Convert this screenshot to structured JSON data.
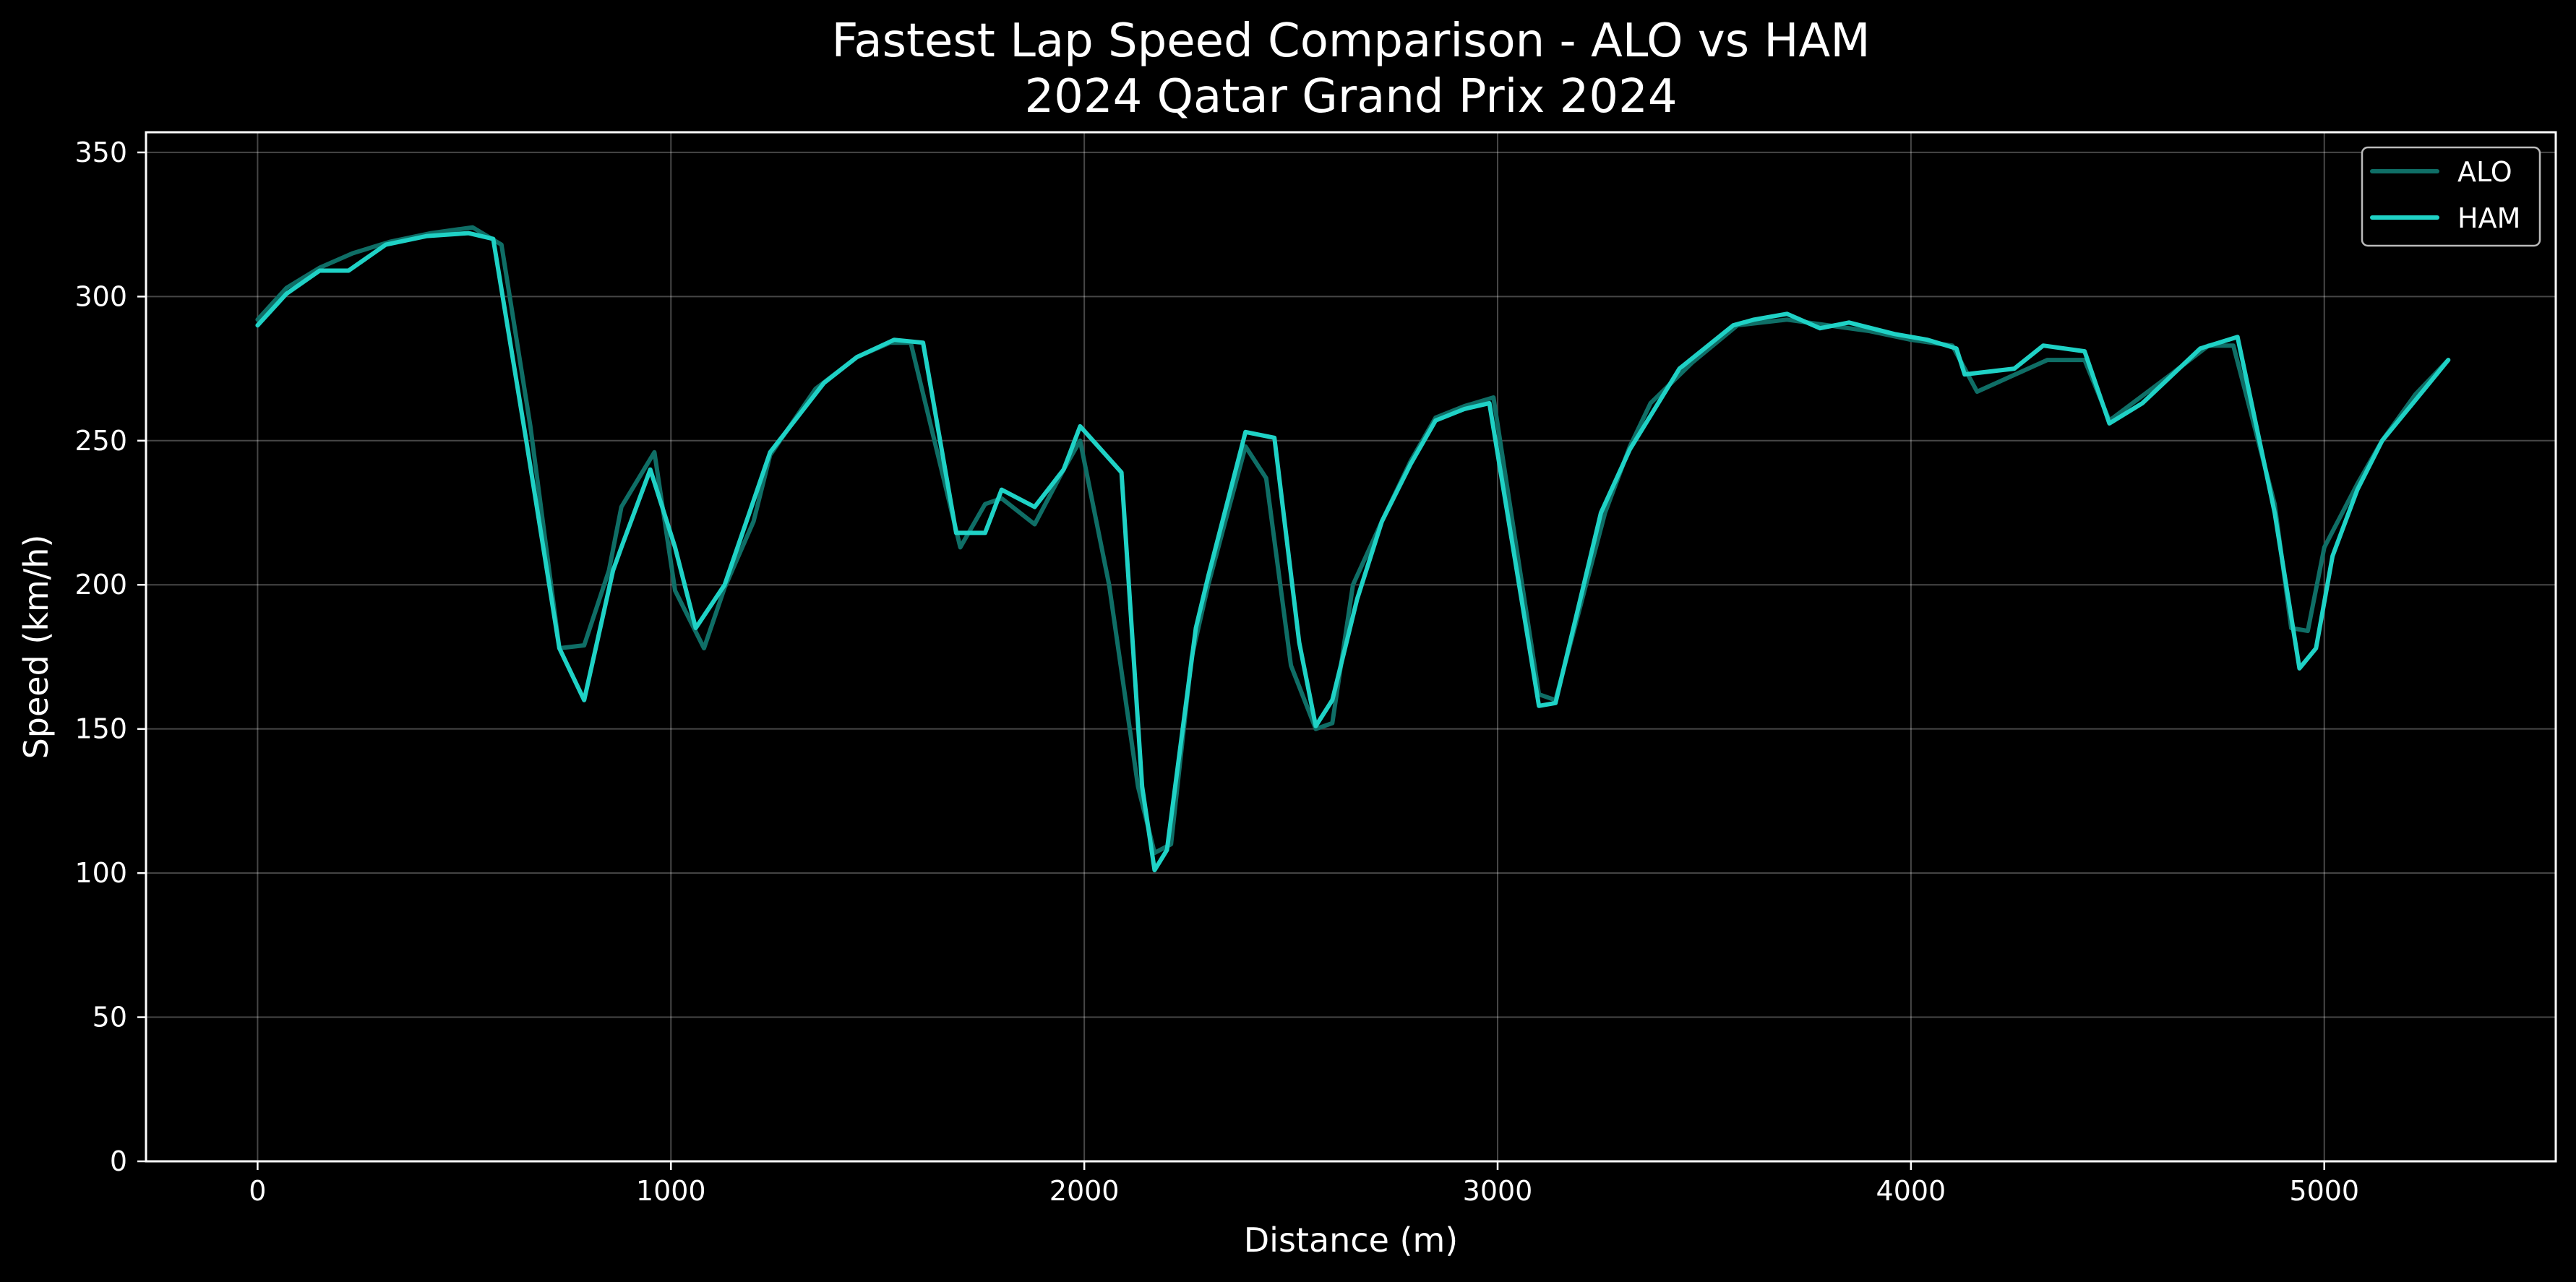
{
  "chart_data": {
    "type": "line",
    "title": "Fastest Lap Speed Comparison - ALO vs HAM",
    "subtitle": "2024 Qatar Grand Prix 2024",
    "xlabel": "Distance (m)",
    "ylabel": "Speed (km/h)",
    "xlim": [
      -270,
      5560
    ],
    "ylim": [
      0,
      357
    ],
    "xticks": [
      0,
      1000,
      2000,
      3000,
      4000,
      5000
    ],
    "yticks": [
      0,
      50,
      100,
      150,
      200,
      250,
      300,
      350
    ],
    "grid": true,
    "legend_position": "top-right",
    "background": "#000000",
    "series": [
      {
        "name": "ALO",
        "color": "#0f6e66",
        "points": [
          [
            0,
            292
          ],
          [
            70,
            303
          ],
          [
            150,
            310
          ],
          [
            230,
            315
          ],
          [
            320,
            319
          ],
          [
            420,
            322
          ],
          [
            520,
            324
          ],
          [
            590,
            318
          ],
          [
            660,
            255
          ],
          [
            730,
            178
          ],
          [
            790,
            179
          ],
          [
            850,
            205
          ],
          [
            880,
            227
          ],
          [
            960,
            246
          ],
          [
            1010,
            198
          ],
          [
            1080,
            178
          ],
          [
            1130,
            199
          ],
          [
            1200,
            222
          ],
          [
            1240,
            245
          ],
          [
            1350,
            268
          ],
          [
            1450,
            279
          ],
          [
            1530,
            284
          ],
          [
            1580,
            284
          ],
          [
            1700,
            213
          ],
          [
            1760,
            228
          ],
          [
            1800,
            230
          ],
          [
            1880,
            221
          ],
          [
            1950,
            240
          ],
          [
            1990,
            250
          ],
          [
            2060,
            200
          ],
          [
            2130,
            130
          ],
          [
            2170,
            107
          ],
          [
            2210,
            110
          ],
          [
            2260,
            175
          ],
          [
            2300,
            200
          ],
          [
            2390,
            248
          ],
          [
            2440,
            237
          ],
          [
            2500,
            172
          ],
          [
            2560,
            150
          ],
          [
            2600,
            152
          ],
          [
            2650,
            200
          ],
          [
            2720,
            222
          ],
          [
            2790,
            243
          ],
          [
            2850,
            258
          ],
          [
            2920,
            262
          ],
          [
            2990,
            265
          ],
          [
            3100,
            162
          ],
          [
            3140,
            160
          ],
          [
            3260,
            225
          ],
          [
            3320,
            248
          ],
          [
            3370,
            263
          ],
          [
            3470,
            277
          ],
          [
            3580,
            290
          ],
          [
            3700,
            292
          ],
          [
            3800,
            290
          ],
          [
            3900,
            288
          ],
          [
            4000,
            285
          ],
          [
            4100,
            283
          ],
          [
            4160,
            267
          ],
          [
            4330,
            278
          ],
          [
            4420,
            278
          ],
          [
            4480,
            257
          ],
          [
            4620,
            272
          ],
          [
            4720,
            283
          ],
          [
            4780,
            283
          ],
          [
            4880,
            228
          ],
          [
            4920,
            185
          ],
          [
            4960,
            184
          ],
          [
            5000,
            213
          ],
          [
            5080,
            235
          ],
          [
            5140,
            250
          ],
          [
            5220,
            266
          ],
          [
            5300,
            278
          ]
        ]
      },
      {
        "name": "HAM",
        "color": "#1fd2c6",
        "points": [
          [
            0,
            290
          ],
          [
            70,
            301
          ],
          [
            150,
            309
          ],
          [
            220,
            309
          ],
          [
            310,
            318
          ],
          [
            410,
            321
          ],
          [
            510,
            322
          ],
          [
            570,
            320
          ],
          [
            650,
            250
          ],
          [
            730,
            178
          ],
          [
            790,
            160
          ],
          [
            860,
            205
          ],
          [
            880,
            213
          ],
          [
            950,
            240
          ],
          [
            1010,
            213
          ],
          [
            1060,
            185
          ],
          [
            1130,
            200
          ],
          [
            1190,
            225
          ],
          [
            1240,
            246
          ],
          [
            1370,
            270
          ],
          [
            1450,
            279
          ],
          [
            1540,
            285
          ],
          [
            1610,
            284
          ],
          [
            1690,
            218
          ],
          [
            1760,
            218
          ],
          [
            1800,
            233
          ],
          [
            1880,
            227
          ],
          [
            1950,
            240
          ],
          [
            1990,
            255
          ],
          [
            2090,
            239
          ],
          [
            2140,
            130
          ],
          [
            2170,
            101
          ],
          [
            2200,
            108
          ],
          [
            2270,
            185
          ],
          [
            2300,
            203
          ],
          [
            2390,
            253
          ],
          [
            2460,
            251
          ],
          [
            2520,
            180
          ],
          [
            2560,
            151
          ],
          [
            2600,
            160
          ],
          [
            2660,
            195
          ],
          [
            2720,
            222
          ],
          [
            2790,
            242
          ],
          [
            2850,
            257
          ],
          [
            2920,
            261
          ],
          [
            2980,
            263
          ],
          [
            3100,
            158
          ],
          [
            3140,
            159
          ],
          [
            3250,
            225
          ],
          [
            3320,
            247
          ],
          [
            3440,
            275
          ],
          [
            3570,
            290
          ],
          [
            3620,
            292
          ],
          [
            3700,
            294
          ],
          [
            3780,
            289
          ],
          [
            3850,
            291
          ],
          [
            3960,
            287
          ],
          [
            4040,
            285
          ],
          [
            4110,
            282
          ],
          [
            4130,
            273
          ],
          [
            4250,
            275
          ],
          [
            4320,
            283
          ],
          [
            4420,
            281
          ],
          [
            4480,
            256
          ],
          [
            4560,
            263
          ],
          [
            4700,
            282
          ],
          [
            4790,
            286
          ],
          [
            4880,
            225
          ],
          [
            4940,
            171
          ],
          [
            4980,
            178
          ],
          [
            5020,
            210
          ],
          [
            5080,
            233
          ],
          [
            5140,
            250
          ],
          [
            5220,
            264
          ],
          [
            5300,
            278
          ]
        ]
      }
    ]
  }
}
